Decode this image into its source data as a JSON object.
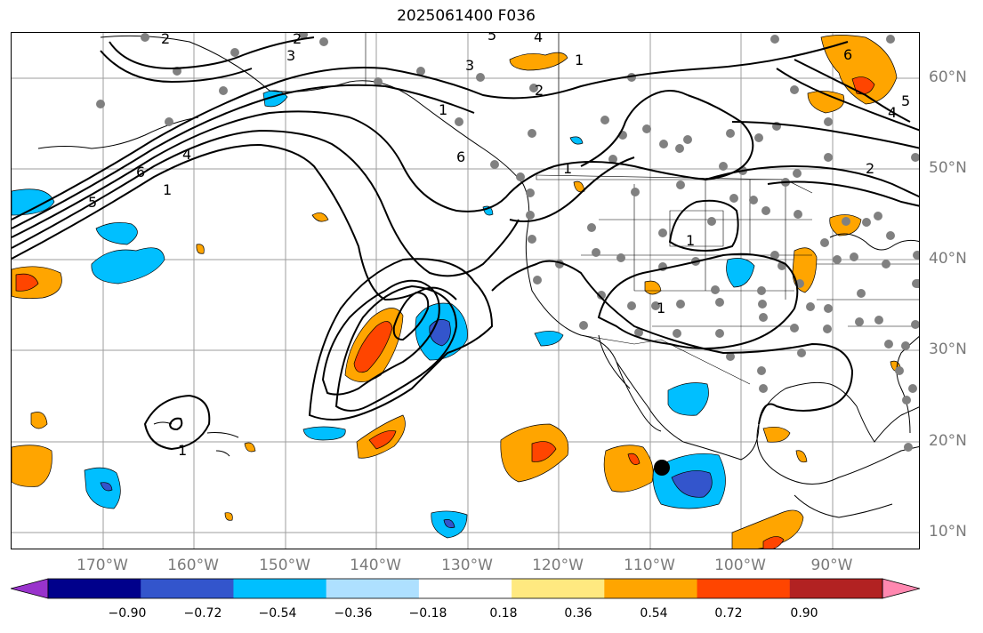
{
  "title": "2025061400 F036",
  "lon_labels": [
    "170°W",
    "160°W",
    "150°W",
    "140°W",
    "130°W",
    "120°W",
    "110°W",
    "100°W",
    "90°W"
  ],
  "lat_labels": [
    "60°N",
    "50°N",
    "40°N",
    "30°N",
    "20°N",
    "10°N"
  ],
  "colorbar": {
    "colors": [
      "#9933cc",
      "#00008b",
      "#3355cc",
      "#00bfff",
      "#aee0ff",
      "#ffffff",
      "#ffe980",
      "#ffa500",
      "#ff4500",
      "#b22222",
      "#ff88b0"
    ],
    "ticks": [
      "−0.90",
      "−0.72",
      "−0.54",
      "−0.36",
      "−0.18",
      "0.18",
      "0.36",
      "0.54",
      "0.72",
      "0.90"
    ]
  },
  "contour_labels": [
    "2",
    "5",
    "4",
    "3",
    "1",
    "2",
    "3",
    "2",
    "6",
    "1",
    "6",
    "4",
    "1",
    "5",
    "1",
    "1",
    "1",
    "1",
    "6",
    "4",
    "5",
    "2"
  ],
  "colors": {
    "orange": "#ffa500",
    "red": "#ff4500",
    "deepskyblue": "#00bfff",
    "royalblue": "#3355cc",
    "station": "#808080",
    "grid": "#9e9e9e"
  }
}
